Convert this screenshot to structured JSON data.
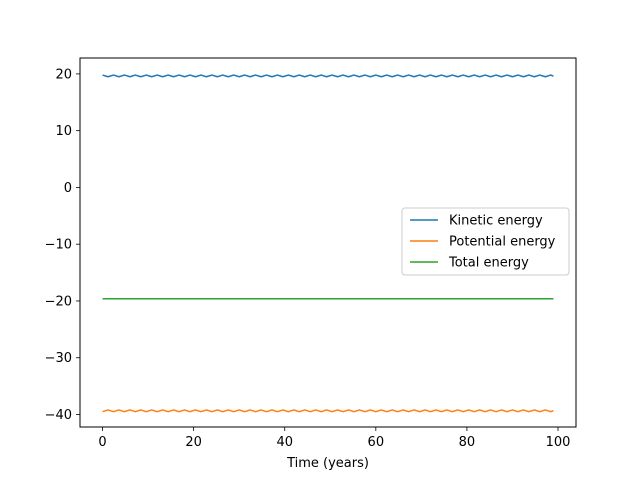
{
  "chart_data": {
    "type": "line",
    "title": "",
    "xlabel": "Time (years)",
    "ylabel": "",
    "xlim": [
      -4.95,
      103.95
    ],
    "ylim": [
      -42.2,
      22.8
    ],
    "xticks": [
      0,
      20,
      40,
      60,
      80,
      100
    ],
    "yticks": [
      -40,
      -30,
      -20,
      -10,
      0,
      10,
      20
    ],
    "grid": false,
    "legend": "center-right",
    "series": [
      {
        "name": "Kinetic energy",
        "color": "#1f77b4",
        "x": [
          0,
          1.2,
          2.4,
          3.6,
          4.8,
          6,
          7.2,
          8.4,
          9.6,
          10.8,
          12,
          13.2,
          14.4,
          15.6,
          16.8,
          18,
          19.2,
          20.4,
          21.6,
          22.8,
          24,
          25.2,
          26.4,
          27.6,
          28.8,
          30,
          31.2,
          32.4,
          33.6,
          34.8,
          36,
          37.2,
          38.4,
          39.6,
          40.8,
          42,
          43.2,
          44.4,
          45.6,
          46.8,
          48,
          49.2,
          50.4,
          51.6,
          52.8,
          54,
          55.2,
          56.4,
          57.6,
          58.8,
          60,
          61.2,
          62.4,
          63.6,
          64.8,
          66,
          67.2,
          68.4,
          69.6,
          70.8,
          72,
          73.2,
          74.4,
          75.6,
          76.8,
          78,
          79.2,
          80.4,
          81.6,
          82.8,
          84,
          85.2,
          86.4,
          87.6,
          88.8,
          90,
          91.2,
          92.4,
          93.6,
          94.8,
          96,
          97.2,
          98.4,
          99
        ],
        "y": [
          19.8,
          19.5,
          19.8,
          19.5,
          19.8,
          19.5,
          19.8,
          19.5,
          19.8,
          19.5,
          19.8,
          19.5,
          19.8,
          19.5,
          19.8,
          19.5,
          19.8,
          19.5,
          19.8,
          19.5,
          19.8,
          19.5,
          19.8,
          19.5,
          19.8,
          19.5,
          19.8,
          19.5,
          19.8,
          19.5,
          19.8,
          19.5,
          19.8,
          19.5,
          19.8,
          19.5,
          19.8,
          19.5,
          19.8,
          19.5,
          19.8,
          19.5,
          19.8,
          19.5,
          19.8,
          19.5,
          19.8,
          19.5,
          19.8,
          19.5,
          19.8,
          19.5,
          19.8,
          19.5,
          19.8,
          19.5,
          19.8,
          19.5,
          19.8,
          19.5,
          19.8,
          19.5,
          19.8,
          19.5,
          19.8,
          19.5,
          19.8,
          19.5,
          19.8,
          19.5,
          19.8,
          19.5,
          19.8,
          19.5,
          19.8,
          19.5,
          19.8,
          19.5,
          19.8,
          19.5,
          19.8,
          19.5,
          19.8,
          19.6
        ]
      },
      {
        "name": "Potential energy",
        "color": "#ff7f0e",
        "x": [
          0,
          1.2,
          2.4,
          3.6,
          4.8,
          6,
          7.2,
          8.4,
          9.6,
          10.8,
          12,
          13.2,
          14.4,
          15.6,
          16.8,
          18,
          19.2,
          20.4,
          21.6,
          22.8,
          24,
          25.2,
          26.4,
          27.6,
          28.8,
          30,
          31.2,
          32.4,
          33.6,
          34.8,
          36,
          37.2,
          38.4,
          39.6,
          40.8,
          42,
          43.2,
          44.4,
          45.6,
          46.8,
          48,
          49.2,
          50.4,
          51.6,
          52.8,
          54,
          55.2,
          56.4,
          57.6,
          58.8,
          60,
          61.2,
          62.4,
          63.6,
          64.8,
          66,
          67.2,
          68.4,
          69.6,
          70.8,
          72,
          73.2,
          74.4,
          75.6,
          76.8,
          78,
          79.2,
          80.4,
          81.6,
          82.8,
          84,
          85.2,
          86.4,
          87.6,
          88.8,
          90,
          91.2,
          92.4,
          93.6,
          94.8,
          96,
          97.2,
          98.4,
          99
        ],
        "y": [
          -39.5,
          -39.2,
          -39.5,
          -39.2,
          -39.5,
          -39.2,
          -39.5,
          -39.2,
          -39.5,
          -39.2,
          -39.5,
          -39.2,
          -39.5,
          -39.2,
          -39.5,
          -39.2,
          -39.5,
          -39.2,
          -39.5,
          -39.2,
          -39.5,
          -39.2,
          -39.5,
          -39.2,
          -39.5,
          -39.2,
          -39.5,
          -39.2,
          -39.5,
          -39.2,
          -39.5,
          -39.2,
          -39.5,
          -39.2,
          -39.5,
          -39.2,
          -39.5,
          -39.2,
          -39.5,
          -39.2,
          -39.5,
          -39.2,
          -39.5,
          -39.2,
          -39.5,
          -39.2,
          -39.5,
          -39.2,
          -39.5,
          -39.2,
          -39.5,
          -39.2,
          -39.5,
          -39.2,
          -39.5,
          -39.2,
          -39.5,
          -39.2,
          -39.5,
          -39.2,
          -39.5,
          -39.2,
          -39.5,
          -39.2,
          -39.5,
          -39.2,
          -39.5,
          -39.2,
          -39.5,
          -39.2,
          -39.5,
          -39.2,
          -39.5,
          -39.2,
          -39.5,
          -39.2,
          -39.5,
          -39.2,
          -39.5,
          -39.2,
          -39.5,
          -39.2,
          -39.5,
          -39.3
        ]
      },
      {
        "name": "Total energy",
        "color": "#2ca02c",
        "x": [
          0,
          99
        ],
        "y": [
          -19.6,
          -19.6
        ]
      }
    ]
  }
}
